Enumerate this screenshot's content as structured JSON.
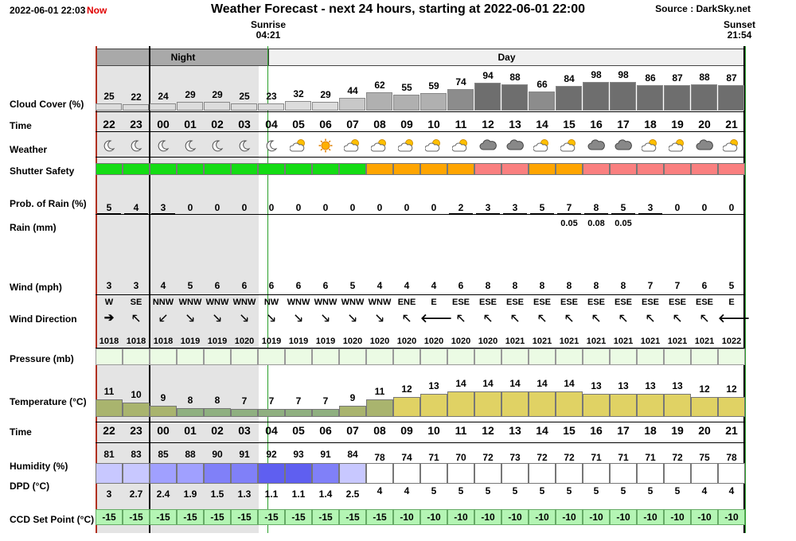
{
  "header": {
    "timestamp": "2022-06-01 22:03",
    "now_label": "Now",
    "title": "Weather Forecast - next 24 hours, starting at 2022-06-01 22:00",
    "source": "Source : DarkSky.net",
    "sunrise_label": "Sunrise",
    "sunrise_time": "04:21",
    "sunset_label": "Sunset",
    "sunset_time": "21:54",
    "night_label": "Night",
    "day_label": "Day"
  },
  "labels": {
    "cloud": "Cloud Cover (%)",
    "time": "Time",
    "weather": "Weather",
    "shutter": "Shutter Safety",
    "prob": "Prob. of Rain (%)",
    "rain": "Rain (mm)",
    "wind": "Wind (mph)",
    "direction": "Wind Direction",
    "pressure": "Pressure (mb)",
    "temperature": "Temperature (°C)",
    "time2": "Time",
    "humidity": "Humidity (%)",
    "dpd": "DPD (°C)",
    "ccd": "CCD Set Point (°C)"
  },
  "colors": {
    "night_bg": "#e4e4e4",
    "day_band": "#f0f0f0",
    "night_band": "#a9a9a9",
    "safe": "#14dc14",
    "caution": "#ffa500",
    "unsafe": "#fa8080",
    "ccd_bg": "#b4f5b4",
    "pressure_bg": "#ebfbe4",
    "temp_olive": "#a9b46e",
    "temp_green": "#8fb080",
    "temp_yellow": "#e0d264",
    "sunset_line": "#2aa02a",
    "now_line": "#b03020"
  },
  "hours": [
    "22",
    "23",
    "00",
    "01",
    "02",
    "03",
    "04",
    "05",
    "06",
    "07",
    "08",
    "09",
    "10",
    "11",
    "12",
    "13",
    "14",
    "15",
    "16",
    "17",
    "18",
    "19",
    "20",
    "21"
  ],
  "cloud_cover": [
    25,
    22,
    24,
    29,
    29,
    25,
    23,
    32,
    29,
    44,
    62,
    55,
    59,
    74,
    94,
    88,
    66,
    84,
    98,
    98,
    86,
    87,
    88,
    87
  ],
  "weather_icons": [
    "moon-icon",
    "moon-icon",
    "moon-icon",
    "moon-icon",
    "moon-icon",
    "moon-icon",
    "moon-icon",
    "partly-cloudy-day-icon",
    "sun-icon",
    "partly-cloudy-day-icon",
    "partly-cloudy-day-icon",
    "partly-cloudy-day-icon",
    "partly-cloudy-day-icon",
    "partly-cloudy-day-icon",
    "cloudy-icon",
    "cloudy-icon",
    "partly-cloudy-day-icon",
    "partly-cloudy-day-icon",
    "cloudy-icon",
    "cloudy-icon",
    "partly-cloudy-day-icon",
    "partly-cloudy-day-icon",
    "cloudy-icon",
    "partly-cloudy-day-icon"
  ],
  "shutter_safety": [
    "safe",
    "safe",
    "safe",
    "safe",
    "safe",
    "safe",
    "safe",
    "safe",
    "safe",
    "safe",
    "caution",
    "caution",
    "caution",
    "caution",
    "unsafe",
    "unsafe",
    "caution",
    "caution",
    "unsafe",
    "unsafe",
    "unsafe",
    "unsafe",
    "unsafe",
    "unsafe"
  ],
  "prob_rain": [
    5,
    4,
    3,
    0,
    0,
    0,
    0,
    0,
    0,
    0,
    0,
    0,
    0,
    2,
    3,
    3,
    5,
    7,
    8,
    5,
    3,
    0,
    0,
    0
  ],
  "rain_mm": [
    "",
    "",
    "",
    "",
    "",
    "",
    "",
    "",
    "",
    "",
    "",
    "",
    "",
    "",
    "",
    "",
    "",
    "0.05",
    "0.08",
    "0.05",
    "",
    "",
    "",
    ""
  ],
  "wind_mph": [
    3,
    3,
    4,
    5,
    6,
    6,
    6,
    6,
    6,
    5,
    4,
    4,
    4,
    6,
    8,
    8,
    8,
    8,
    8,
    8,
    7,
    7,
    6,
    5
  ],
  "wind_dir": [
    "W",
    "SE",
    "NNW",
    "WNW",
    "WNW",
    "WNW",
    "NW",
    "WNW",
    "WNW",
    "WNW",
    "WNW",
    "ENE",
    "E",
    "ESE",
    "ESE",
    "ESE",
    "ESE",
    "ESE",
    "ESE",
    "ESE",
    "ESE",
    "ESE",
    "ESE",
    "E"
  ],
  "wind_arrows": [
    "➔",
    "🡔",
    "🡗",
    "🡖",
    "🡖",
    "🡖",
    "🡖",
    "🡖",
    "🡖",
    "🡖",
    "🡖",
    "🡔",
    "🡐",
    "🡔",
    "🡔",
    "🡔",
    "🡔",
    "🡔",
    "🡔",
    "🡔",
    "🡔",
    "🡔",
    "🡔",
    "🡐"
  ],
  "pressure_mb": [
    1018,
    1018,
    1018,
    1019,
    1019,
    1020,
    1019,
    1019,
    1019,
    1020,
    1020,
    1020,
    1020,
    1020,
    1020,
    1021,
    1021,
    1021,
    1021,
    1021,
    1021,
    1021,
    1021,
    1022
  ],
  "temperature_c": [
    11,
    10,
    9,
    8,
    8,
    7,
    7,
    7,
    7,
    9,
    11,
    12,
    13,
    14,
    14,
    14,
    14,
    14,
    13,
    13,
    13,
    13,
    12,
    12
  ],
  "humidity_pct": [
    81,
    83,
    85,
    88,
    90,
    91,
    92,
    93,
    91,
    84,
    78,
    74,
    71,
    70,
    72,
    73,
    72,
    72,
    71,
    71,
    71,
    72,
    75,
    78
  ],
  "dpd_c": [
    "3",
    "2.7",
    "2.4",
    "1.9",
    "1.5",
    "1.3",
    "1.1",
    "1.1",
    "1.4",
    "2.5",
    "4",
    "4",
    "5",
    "5",
    "5",
    "5",
    "5",
    "5",
    "5",
    "5",
    "5",
    "5",
    "4",
    "4"
  ],
  "ccd_set_point": [
    -15,
    -15,
    -15,
    -15,
    -15,
    -15,
    -15,
    -15,
    -15,
    -15,
    -15,
    -10,
    -10,
    -10,
    -10,
    -10,
    -10,
    -10,
    -10,
    -10,
    -10,
    -10,
    -10,
    -10
  ]
}
